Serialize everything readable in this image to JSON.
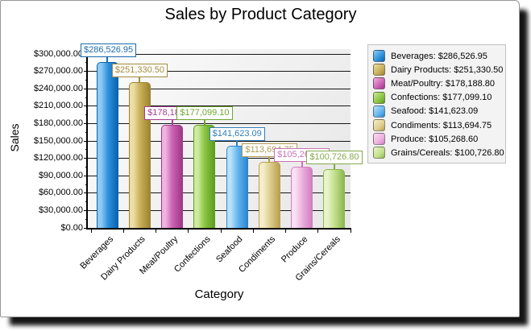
{
  "title": "Sales by Product Category",
  "frame": {
    "background": "#ffffff",
    "border": "#989898",
    "shadow": "#000000"
  },
  "chart_data": {
    "type": "bar",
    "title": "Sales by Product Category",
    "xlabel": "Category",
    "ylabel": "Sales",
    "categories": [
      "Beverages",
      "Dairy Products",
      "Meat/Poultry",
      "Confections",
      "Seafood",
      "Condiments",
      "Produce",
      "Grains/Cereals"
    ],
    "values": [
      286526.95,
      251330.5,
      178188.8,
      177099.1,
      141623.09,
      113694.75,
      105268.6,
      100726.8
    ],
    "value_labels": [
      "$286,526.95",
      "$251,330.50",
      "$178,188.80",
      "$177,099.10",
      "$141,623.09",
      "$113,694.75",
      "$105,268.60",
      "$100,726.80"
    ],
    "ylim": [
      0,
      300000
    ],
    "ytick_interval": 30000,
    "ytick_labels": [
      "$0.00",
      "$30,000.00",
      "$60,000.00",
      "$90,000.00",
      "$120,000.00",
      "$150,000.00",
      "$180,000.00",
      "$210,000.00",
      "$240,000.00",
      "$270,000.00",
      "$300,000.00"
    ],
    "grid": "horizontal-major",
    "legend_position": "right",
    "plot_background": [
      "#fdfdfd",
      "#e7e7e7"
    ],
    "gridline_color": "#161616",
    "series_colors": [
      {
        "name": "Beverages",
        "light": "#8ecbf4",
        "mid": "#2e91dc",
        "dark": "#0a63b2",
        "accent": "#1a6aae"
      },
      {
        "name": "Dairy Products",
        "light": "#ebdfa5",
        "mid": "#c9af58",
        "dark": "#9d8430",
        "accent": "#a28b3b"
      },
      {
        "name": "Meat/Poultry",
        "light": "#f1b3df",
        "mid": "#c961b1",
        "dark": "#a23689",
        "accent": "#a63e92"
      },
      {
        "name": "Confections",
        "light": "#ceeb9d",
        "mid": "#8ac542",
        "dark": "#5e9d20",
        "accent": "#6fa62f"
      },
      {
        "name": "Seafood",
        "light": "#b9e1f9",
        "mid": "#64b5ef",
        "dark": "#2c86ce",
        "accent": "#2f7db9"
      },
      {
        "name": "Condiments",
        "light": "#f6eec9",
        "mid": "#decf90",
        "dark": "#ba9f50",
        "accent": "#b39b55"
      },
      {
        "name": "Produce",
        "light": "#fbdff5",
        "mid": "#ebb1dd",
        "dark": "#d37dbf",
        "accent": "#c972b5"
      },
      {
        "name": "Grains/Cereals",
        "light": "#e7f3c8",
        "mid": "#c4e18f",
        "dark": "#8bb84d",
        "accent": "#85a94a"
      }
    ]
  },
  "legend": {
    "items": [
      "Beverages: $286,526.95",
      "Dairy Products: $251,330.50",
      "Meat/Poultry: $178,188.80",
      "Confections: $177,099.10",
      "Seafood: $141,623.09",
      "Condiments: $113,694.75",
      "Produce: $105,268.60",
      "Grains/Cereals: $100,726.80"
    ]
  }
}
